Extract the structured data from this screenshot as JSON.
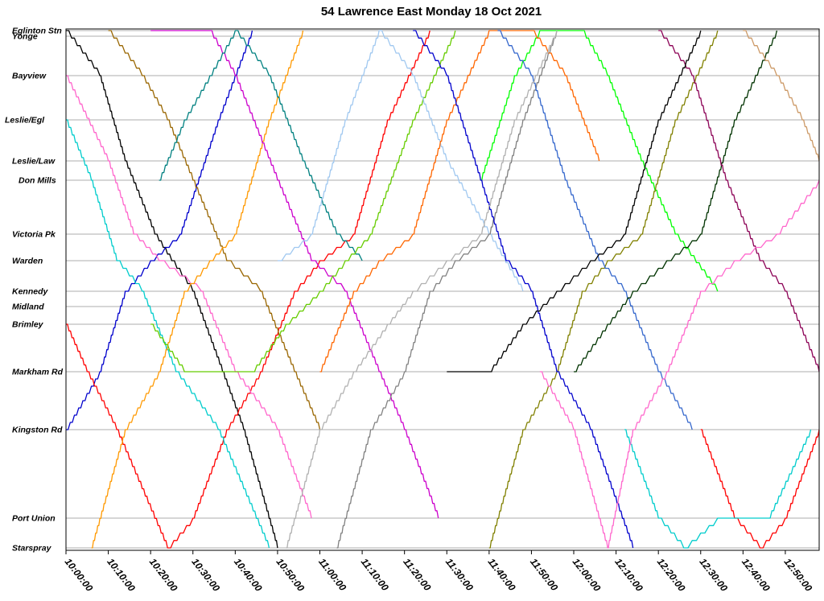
{
  "chart_data": {
    "type": "line",
    "title": "54 Lawrence East Monday 18 Oct 2021",
    "xlabel": "",
    "ylabel": "",
    "x_range": [
      "10:00:00",
      "12:58:00"
    ],
    "x_ticks": [
      "10:00:00",
      "10:10:00",
      "10:20:00",
      "10:30:00",
      "10:40:00",
      "10:50:00",
      "11:00:00",
      "11:10:00",
      "11:20:00",
      "11:30:00",
      "11:40:00",
      "11:50:00",
      "12:00:00",
      "12:10:00",
      "12:20:00",
      "12:30:00",
      "12:40:00",
      "12:50:00"
    ],
    "stops": [
      "Eglinton Stn",
      "Yonge",
      "Bayview",
      "Leslie/Egl",
      "Leslie/Law",
      "Don Mills",
      "Victoria Pk",
      "Warden",
      "Kennedy",
      "Midland",
      "Brimley",
      "Markham Rd",
      "Kingston Rd",
      "Port Union",
      "Starspray"
    ],
    "grid": true,
    "legend": "none",
    "trip_colors": [
      "#000000",
      "#0000cc",
      "#ff0000",
      "#00cccc",
      "#ff66cc",
      "#996600",
      "#ff9900",
      "#8b0055",
      "#008080",
      "#cc00cc",
      "#66cc00",
      "#00ff00",
      "#a0c8f0",
      "#808000",
      "#808080",
      "#ff6600",
      "#3366cc",
      "#b0b0b0",
      "#003300",
      "#cc9966"
    ],
    "trips": [
      {
        "color": "#000000",
        "points": [
          [
            "10:00:00",
            "Eglinton Stn"
          ],
          [
            "10:08:00",
            "Bayview"
          ],
          [
            "10:14:00",
            "Leslie/Law"
          ],
          [
            "10:21:00",
            "Victoria Pk"
          ],
          [
            "10:25:00",
            "Warden"
          ],
          [
            "10:30:00",
            "Kennedy"
          ],
          [
            "10:37:00",
            "Markham Rd"
          ],
          [
            "10:42:00",
            "Kingston Rd"
          ],
          [
            "10:50:00",
            "Starspray"
          ]
        ]
      },
      {
        "color": "#0000cc",
        "points": [
          [
            "10:00:00",
            "Kingston Rd"
          ],
          [
            "10:08:00",
            "Markham Rd"
          ],
          [
            "10:14:00",
            "Kennedy"
          ],
          [
            "10:20:00",
            "Warden"
          ],
          [
            "10:27:00",
            "Victoria Pk"
          ],
          [
            "10:36:00",
            "Leslie/Egl"
          ],
          [
            "10:44:00",
            "Eglinton Stn"
          ]
        ]
      },
      {
        "color": "#ff0000",
        "points": [
          [
            "10:00:00",
            "Brimley"
          ],
          [
            "10:05:00",
            "Markham Rd"
          ],
          [
            "10:12:00",
            "Kingston Rd"
          ],
          [
            "10:24:00",
            "Starspray"
          ],
          [
            "10:30:00",
            "Port Union"
          ],
          [
            "10:38:00",
            "Kingston Rd"
          ],
          [
            "10:46:00",
            "Markham Rd"
          ],
          [
            "10:54:00",
            "Kennedy"
          ],
          [
            "11:00:00",
            "Warden"
          ],
          [
            "11:08:00",
            "Victoria Pk"
          ],
          [
            "11:16:00",
            "Leslie/Egl"
          ],
          [
            "11:26:00",
            "Eglinton Stn"
          ]
        ]
      },
      {
        "color": "#00cccc",
        "points": [
          [
            "10:00:00",
            "Leslie/Egl"
          ],
          [
            "10:06:00",
            "Don Mills"
          ],
          [
            "10:12:00",
            "Warden"
          ],
          [
            "10:18:00",
            "Kennedy"
          ],
          [
            "10:26:00",
            "Markham Rd"
          ],
          [
            "10:36:00",
            "Kingston Rd"
          ],
          [
            "10:48:00",
            "Starspray"
          ]
        ]
      },
      {
        "color": "#ff66cc",
        "points": [
          [
            "10:00:00",
            "Bayview"
          ],
          [
            "10:10:00",
            "Leslie/Law"
          ],
          [
            "10:16:00",
            "Victoria Pk"
          ],
          [
            "10:22:00",
            "Warden"
          ],
          [
            "10:32:00",
            "Kennedy"
          ],
          [
            "10:40:00",
            "Markham Rd"
          ],
          [
            "10:50:00",
            "Kingston Rd"
          ],
          [
            "10:58:00",
            "Port Union"
          ]
        ]
      },
      {
        "color": "#996600",
        "points": [
          [
            "10:10:00",
            "Eglinton Stn"
          ],
          [
            "10:18:00",
            "Bayview"
          ],
          [
            "10:24:00",
            "Leslie/Egl"
          ],
          [
            "10:30:00",
            "Don Mills"
          ],
          [
            "10:38:00",
            "Warden"
          ],
          [
            "10:46:00",
            "Kennedy"
          ],
          [
            "10:54:00",
            "Markham Rd"
          ],
          [
            "11:00:00",
            "Kingston Rd"
          ]
        ]
      },
      {
        "color": "#ff9900",
        "points": [
          [
            "10:06:00",
            "Starspray"
          ],
          [
            "10:14:00",
            "Kingston Rd"
          ],
          [
            "10:22:00",
            "Markham Rd"
          ],
          [
            "10:28:00",
            "Kennedy"
          ],
          [
            "10:34:00",
            "Warden"
          ],
          [
            "10:40:00",
            "Victoria Pk"
          ],
          [
            "10:48:00",
            "Leslie/Egl"
          ],
          [
            "10:56:00",
            "Eglinton Stn"
          ]
        ]
      },
      {
        "color": "#cc00cc",
        "points": [
          [
            "10:20:00",
            "Eglinton Stn"
          ],
          [
            "10:34:00",
            "Eglinton Stn"
          ],
          [
            "10:40:00",
            "Bayview"
          ],
          [
            "10:50:00",
            "Don Mills"
          ],
          [
            "10:58:00",
            "Warden"
          ],
          [
            "11:06:00",
            "Kennedy"
          ],
          [
            "11:14:00",
            "Markham Rd"
          ],
          [
            "11:20:00",
            "Kingston Rd"
          ],
          [
            "11:28:00",
            "Port Union"
          ]
        ]
      },
      {
        "color": "#008080",
        "points": [
          [
            "10:22:00",
            "Don Mills"
          ],
          [
            "10:28:00",
            "Leslie/Egl"
          ],
          [
            "10:34:00",
            "Bayview"
          ],
          [
            "10:40:00",
            "Eglinton Stn"
          ],
          [
            "10:48:00",
            "Bayview"
          ],
          [
            "10:56:00",
            "Leslie/Law"
          ],
          [
            "11:04:00",
            "Victoria Pk"
          ],
          [
            "11:10:00",
            "Warden"
          ]
        ]
      },
      {
        "color": "#66cc00",
        "points": [
          [
            "10:20:00",
            "Brimley"
          ],
          [
            "10:28:00",
            "Markham Rd"
          ],
          [
            "10:44:00",
            "Markham Rd"
          ],
          [
            "10:52:00",
            "Brimley"
          ],
          [
            "11:00:00",
            "Kennedy"
          ],
          [
            "11:06:00",
            "Warden"
          ],
          [
            "11:12:00",
            "Victoria Pk"
          ],
          [
            "11:22:00",
            "Leslie/Egl"
          ],
          [
            "11:32:00",
            "Eglinton Stn"
          ]
        ]
      },
      {
        "color": "#00ff00",
        "points": [
          [
            "11:38:00",
            "Don Mills"
          ],
          [
            "11:46:00",
            "Bayview"
          ],
          [
            "11:52:00",
            "Eglinton Stn"
          ],
          [
            "12:02:00",
            "Eglinton Stn"
          ],
          [
            "12:08:00",
            "Bayview"
          ],
          [
            "12:16:00",
            "Leslie/Law"
          ],
          [
            "12:24:00",
            "Victoria Pk"
          ],
          [
            "12:34:00",
            "Kennedy"
          ]
        ]
      },
      {
        "color": "#a0c8f0",
        "points": [
          [
            "10:50:00",
            "Warden"
          ],
          [
            "10:58:00",
            "Victoria Pk"
          ],
          [
            "11:06:00",
            "Leslie/Egl"
          ],
          [
            "11:14:00",
            "Eglinton Stn"
          ],
          [
            "11:22:00",
            "Bayview"
          ],
          [
            "11:30:00",
            "Leslie/Law"
          ],
          [
            "11:40:00",
            "Victoria Pk"
          ],
          [
            "11:48:00",
            "Kennedy"
          ]
        ]
      },
      {
        "color": "#808000",
        "points": [
          [
            "11:40:00",
            "Starspray"
          ],
          [
            "11:48:00",
            "Kingston Rd"
          ],
          [
            "11:56:00",
            "Markham Rd"
          ],
          [
            "12:02:00",
            "Kennedy"
          ],
          [
            "12:08:00",
            "Warden"
          ],
          [
            "12:16:00",
            "Victoria Pk"
          ],
          [
            "12:24:00",
            "Leslie/Egl"
          ],
          [
            "12:34:00",
            "Eglinton Stn"
          ]
        ]
      },
      {
        "color": "#808080",
        "points": [
          [
            "11:04:00",
            "Starspray"
          ],
          [
            "11:12:00",
            "Kingston Rd"
          ],
          [
            "11:20:00",
            "Markham Rd"
          ],
          [
            "11:26:00",
            "Kennedy"
          ],
          [
            "11:32:00",
            "Warden"
          ],
          [
            "11:40:00",
            "Victoria Pk"
          ],
          [
            "11:48:00",
            "Leslie/Egl"
          ],
          [
            "11:56:00",
            "Eglinton Stn"
          ]
        ]
      },
      {
        "color": "#ff6600",
        "points": [
          [
            "11:00:00",
            "Markham Rd"
          ],
          [
            "11:08:00",
            "Kennedy"
          ],
          [
            "11:14:00",
            "Warden"
          ],
          [
            "11:22:00",
            "Victoria Pk"
          ],
          [
            "11:30:00",
            "Leslie/Egl"
          ],
          [
            "11:40:00",
            "Eglinton Stn"
          ],
          [
            "11:50:00",
            "Eglinton Stn"
          ],
          [
            "11:58:00",
            "Bayview"
          ],
          [
            "12:06:00",
            "Leslie/Law"
          ]
        ]
      },
      {
        "color": "#3366cc",
        "points": [
          [
            "11:42:00",
            "Eglinton Stn"
          ],
          [
            "11:50:00",
            "Bayview"
          ],
          [
            "11:58:00",
            "Don Mills"
          ],
          [
            "12:06:00",
            "Warden"
          ],
          [
            "12:12:00",
            "Kennedy"
          ],
          [
            "12:20:00",
            "Markham Rd"
          ],
          [
            "12:28:00",
            "Kingston Rd"
          ]
        ]
      },
      {
        "color": "#003300",
        "points": [
          [
            "12:00:00",
            "Markham Rd"
          ],
          [
            "12:08:00",
            "Brimley"
          ],
          [
            "12:14:00",
            "Kennedy"
          ],
          [
            "12:22:00",
            "Warden"
          ],
          [
            "12:30:00",
            "Victoria Pk"
          ],
          [
            "12:38:00",
            "Leslie/Egl"
          ],
          [
            "12:48:00",
            "Eglinton Stn"
          ]
        ]
      },
      {
        "color": "#8b0055",
        "points": [
          [
            "12:20:00",
            "Eglinton Stn"
          ],
          [
            "12:28:00",
            "Bayview"
          ],
          [
            "12:36:00",
            "Don Mills"
          ],
          [
            "12:44:00",
            "Warden"
          ],
          [
            "12:50:00",
            "Kennedy"
          ],
          [
            "12:58:00",
            "Markham Rd"
          ]
        ]
      },
      {
        "color": "#0000cc",
        "points": [
          [
            "11:22:00",
            "Eglinton Stn"
          ],
          [
            "11:30:00",
            "Bayview"
          ],
          [
            "11:38:00",
            "Don Mills"
          ],
          [
            "11:44:00",
            "Warden"
          ],
          [
            "11:50:00",
            "Kennedy"
          ],
          [
            "11:56:00",
            "Markham Rd"
          ],
          [
            "12:04:00",
            "Kingston Rd"
          ],
          [
            "12:14:00",
            "Starspray"
          ]
        ]
      },
      {
        "color": "#ff0000",
        "points": [
          [
            "12:30:00",
            "Kingston Rd"
          ],
          [
            "12:38:00",
            "Port Union"
          ],
          [
            "12:44:00",
            "Starspray"
          ],
          [
            "12:50:00",
            "Port Union"
          ],
          [
            "12:58:00",
            "Kingston Rd"
          ]
        ]
      },
      {
        "color": "#00cccc",
        "points": [
          [
            "12:12:00",
            "Kingston Rd"
          ],
          [
            "12:20:00",
            "Port Union"
          ],
          [
            "12:26:00",
            "Starspray"
          ],
          [
            "12:34:00",
            "Port Union"
          ],
          [
            "12:46:00",
            "Port Union"
          ],
          [
            "12:56:00",
            "Kingston Rd"
          ]
        ]
      },
      {
        "color": "#ff66cc",
        "points": [
          [
            "11:52:00",
            "Markham Rd"
          ],
          [
            "12:00:00",
            "Kingston Rd"
          ],
          [
            "12:08:00",
            "Starspray"
          ],
          [
            "12:14:00",
            "Kingston Rd"
          ],
          [
            "12:22:00",
            "Markham Rd"
          ],
          [
            "12:30:00",
            "Kennedy"
          ],
          [
            "12:38:00",
            "Warden"
          ],
          [
            "12:48:00",
            "Victoria Pk"
          ],
          [
            "12:58:00",
            "Don Mills"
          ]
        ]
      },
      {
        "color": "#b0b0b0",
        "points": [
          [
            "10:52:00",
            "Starspray"
          ],
          [
            "11:00:00",
            "Kingston Rd"
          ],
          [
            "11:08:00",
            "Markham Rd"
          ],
          [
            "11:16:00",
            "Brimley"
          ],
          [
            "11:22:00",
            "Kennedy"
          ],
          [
            "11:30:00",
            "Warden"
          ],
          [
            "11:38:00",
            "Victoria Pk"
          ],
          [
            "11:46:00",
            "Leslie/Egl"
          ],
          [
            "11:56:00",
            "Eglinton Stn"
          ]
        ]
      },
      {
        "color": "#cc9966",
        "points": [
          [
            "12:40:00",
            "Eglinton Stn"
          ],
          [
            "12:48:00",
            "Bayview"
          ],
          [
            "12:54:00",
            "Leslie/Egl"
          ],
          [
            "12:58:00",
            "Leslie/Law"
          ]
        ]
      },
      {
        "color": "#000000",
        "points": [
          [
            "11:30:00",
            "Markham Rd"
          ],
          [
            "11:40:00",
            "Markham Rd"
          ],
          [
            "11:48:00",
            "Brimley"
          ],
          [
            "11:56:00",
            "Kennedy"
          ],
          [
            "12:04:00",
            "Warden"
          ],
          [
            "12:12:00",
            "Victoria Pk"
          ],
          [
            "12:20:00",
            "Leslie/Egl"
          ],
          [
            "12:30:00",
            "Eglinton Stn"
          ]
        ]
      }
    ]
  }
}
